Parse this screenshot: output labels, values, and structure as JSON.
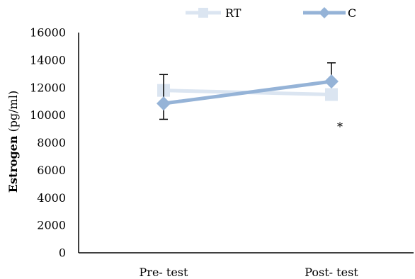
{
  "chart_data": {
    "type": "line",
    "categories": [
      "Pre- test",
      "Post- test"
    ],
    "series": [
      {
        "name": "RT",
        "values": [
          11800,
          11500
        ],
        "color": "#dbe5f1",
        "marker": "square",
        "error_upper": [
          null,
          null
        ]
      },
      {
        "name": "C",
        "values": [
          10850,
          12450
        ],
        "color": "#95b3d7",
        "marker": "diamond",
        "error_upper": [
          2100,
          1350
        ],
        "error_lower": [
          1150,
          null
        ]
      }
    ],
    "ylabel_bold": "Estrogen",
    "ylabel_rest": " (pg/ml)",
    "ylim": [
      0,
      16000
    ],
    "yticks": [
      "0",
      "2000",
      "4000",
      "6000",
      "8000",
      "10000",
      "12000",
      "14000",
      "16000"
    ],
    "grid": false,
    "legend_position": "top",
    "annotations": [
      {
        "text": "*",
        "category_index": 1,
        "y": 9900
      }
    ]
  }
}
